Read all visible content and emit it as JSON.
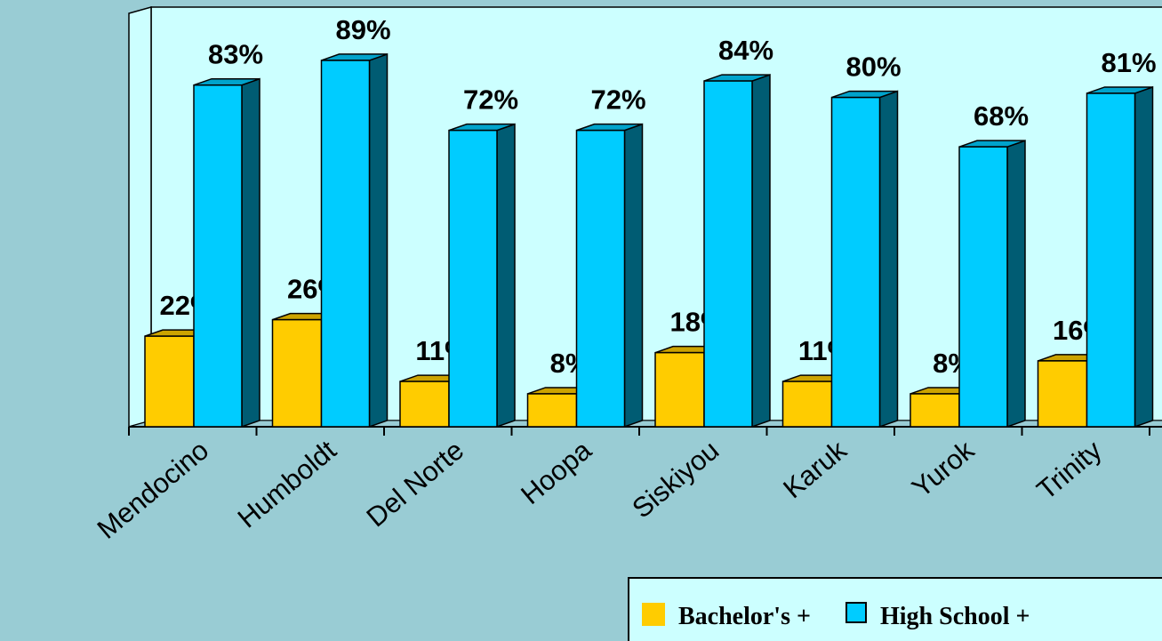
{
  "chart_data": {
    "type": "bar3d",
    "categories": [
      "Mendocino",
      "Humboldt",
      "Del Norte",
      "Hoopa",
      "Siskiyou",
      "Karuk",
      "Yurok",
      "Trinity"
    ],
    "series": [
      {
        "name": "Bachelor's +",
        "color": "#FFCC00",
        "values": [
          22,
          26,
          11,
          8,
          18,
          11,
          8,
          16
        ],
        "value_labels": [
          "22%",
          "26%",
          "11%",
          "8%",
          "18%",
          "11%",
          "8%",
          "16%"
        ]
      },
      {
        "name": "High School +",
        "color": "#00CCFF",
        "values": [
          83,
          89,
          72,
          72,
          84,
          80,
          68,
          81
        ],
        "value_labels": [
          "83%",
          "89%",
          "72%",
          "72%",
          "84%",
          "80%",
          "68%",
          "81%"
        ]
      }
    ],
    "legend": "bottom-right"
  }
}
